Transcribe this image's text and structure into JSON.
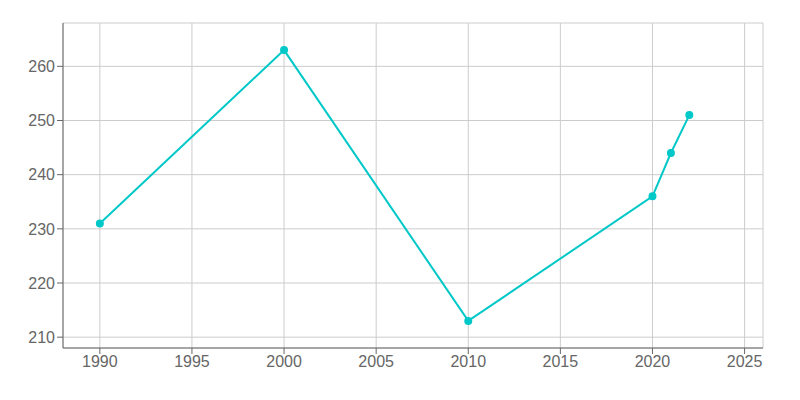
{
  "chart_data": {
    "type": "line",
    "x": [
      1990,
      2000,
      2010,
      2020,
      2021,
      2022
    ],
    "values": [
      231,
      263,
      213,
      236,
      244,
      251
    ],
    "color": "#00C8C8",
    "marker": "o",
    "xlim": [
      1988,
      2026
    ],
    "ylim": [
      208,
      268
    ],
    "xticks": [
      1990,
      1995,
      2000,
      2005,
      2010,
      2015,
      2020,
      2025
    ],
    "yticks": [
      210,
      220,
      230,
      240,
      250,
      260
    ],
    "grid": true
  }
}
